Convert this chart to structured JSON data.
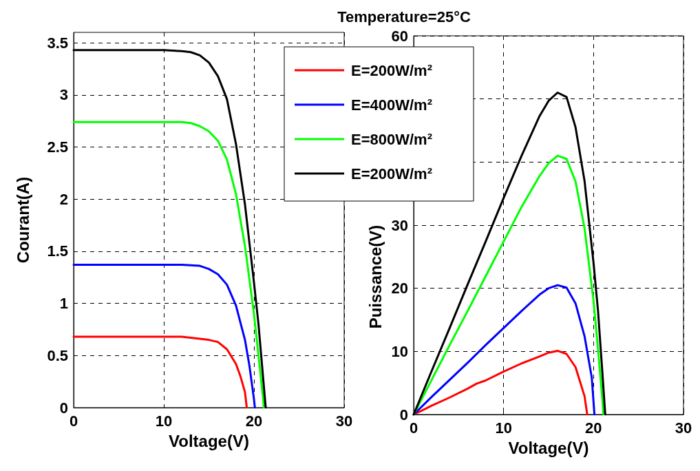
{
  "chart_data": [
    {
      "type": "line",
      "xlabel": "Voltage(V)",
      "ylabel": "Courant(A)",
      "xlim": [
        0,
        30
      ],
      "xticks": [
        0,
        10,
        20,
        30
      ],
      "ylim": [
        0,
        3.6
      ],
      "yticks": [
        0,
        0.5,
        1,
        1.5,
        2,
        2.5,
        3,
        3.5
      ],
      "grid": true,
      "marker": "none",
      "line_style": "solid",
      "legend": false,
      "series": [
        {
          "color": "#ff0000",
          "x": [
            0,
            12,
            14,
            15,
            16,
            17,
            18,
            18.5,
            19,
            19.2
          ],
          "values": [
            0.68,
            0.68,
            0.66,
            0.65,
            0.63,
            0.56,
            0.42,
            0.3,
            0.15,
            0
          ]
        },
        {
          "color": "#0000ff",
          "x": [
            0,
            12,
            14,
            15,
            16,
            17,
            18,
            19,
            19.5,
            20,
            20.1
          ],
          "values": [
            1.37,
            1.37,
            1.36,
            1.33,
            1.28,
            1.18,
            0.98,
            0.65,
            0.4,
            0.08,
            0
          ]
        },
        {
          "color": "#00ff00",
          "x": [
            0,
            12,
            13,
            14,
            15,
            16,
            17,
            18,
            19,
            20,
            20.5,
            21,
            21.1
          ],
          "values": [
            2.74,
            2.74,
            2.73,
            2.7,
            2.65,
            2.56,
            2.38,
            2.05,
            1.55,
            0.9,
            0.5,
            0.1,
            0
          ]
        },
        {
          "color": "#000000",
          "x": [
            0,
            10,
            12,
            13,
            14,
            15,
            16,
            17,
            18,
            19,
            20,
            20.5,
            21,
            21.3
          ],
          "values": [
            3.43,
            3.43,
            3.42,
            3.41,
            3.38,
            3.31,
            3.18,
            2.96,
            2.53,
            1.95,
            1.2,
            0.8,
            0.3,
            0
          ]
        }
      ]
    },
    {
      "type": "line",
      "title": "Temperature=25°C",
      "xlabel": "Voltage(V)",
      "ylabel": "Puissance(V)",
      "xlim": [
        0,
        30
      ],
      "xticks": [
        0,
        10,
        20,
        30
      ],
      "ylim": [
        0,
        60
      ],
      "yticks": [
        0,
        10,
        20,
        30,
        {
          "value": 40,
          "label": null
        },
        {
          "value": 50,
          "label": null
        },
        60
      ],
      "grid": true,
      "marker": "none",
      "line_style": "solid",
      "legend": "top left",
      "series": [
        {
          "name": "E=200W/m²",
          "color": "#ff0000",
          "x": [
            0,
            1,
            2,
            4,
            6,
            7,
            8,
            10,
            12,
            14,
            15,
            16,
            17,
            18,
            19,
            19.3
          ],
          "values": [
            0,
            0.7,
            1.4,
            2.7,
            4.1,
            4.9,
            5.4,
            6.8,
            8.1,
            9.2,
            9.8,
            10.1,
            9.6,
            7.5,
            2.9,
            0
          ]
        },
        {
          "name": "E=400W/m²",
          "color": "#0000ff",
          "x": [
            0,
            2,
            4,
            6,
            8,
            10,
            12,
            14,
            15,
            16,
            17,
            18,
            19,
            19.8,
            20.1
          ],
          "values": [
            0,
            2.8,
            5.5,
            8.2,
            11,
            13.7,
            16.4,
            19,
            20,
            20.5,
            20.1,
            17.6,
            12.4,
            5.9,
            0
          ]
        },
        {
          "name": "E=800W/m²",
          "color": "#00ff00",
          "x": [
            0,
            2,
            4,
            6,
            8,
            10,
            12,
            14,
            15,
            16,
            17,
            18,
            19,
            20,
            20.5,
            21,
            21.1
          ],
          "values": [
            0,
            5.5,
            11,
            16.4,
            21.9,
            27.4,
            32.9,
            37.8,
            39.8,
            41,
            40.5,
            36.9,
            29.5,
            18,
            10.3,
            2.1,
            0
          ]
        },
        {
          "name": "E=200W/m²",
          "color": "#000000",
          "x": [
            0,
            2,
            4,
            6,
            8,
            10,
            12,
            14,
            15,
            16,
            17,
            18,
            19,
            20,
            20.5,
            21,
            21.3
          ],
          "values": [
            0,
            6.9,
            13.7,
            20.6,
            27.4,
            34.3,
            41,
            47.3,
            49.7,
            51,
            50.3,
            45.5,
            37,
            24,
            16.4,
            6.3,
            0
          ]
        }
      ]
    }
  ]
}
